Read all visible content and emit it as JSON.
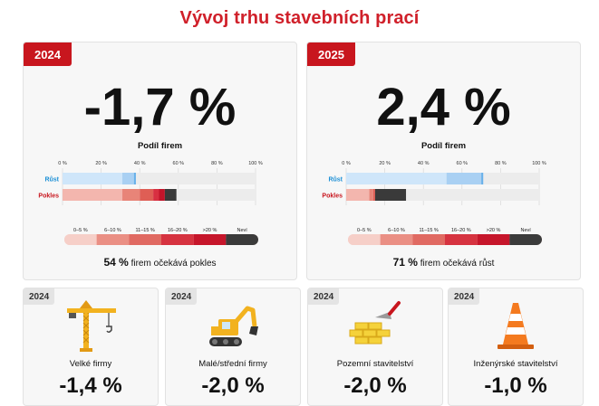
{
  "title": "Vývoj trhu stavebních prací",
  "panels": [
    {
      "year": "2024",
      "value": "-1,7 %",
      "subtitle": "Podíl firem",
      "summary_pct": "54 %",
      "summary_text": "firem očekává pokles"
    },
    {
      "year": "2025",
      "value": "2,4 %",
      "subtitle": "Podíl firem",
      "summary_pct": "71 %",
      "summary_text": "firem očekává růst"
    }
  ],
  "small_cards": [
    {
      "year": "2024",
      "label": "Velké firmy",
      "value": "-1,4 %",
      "icon": "crane-icon"
    },
    {
      "year": "2024",
      "label": "Malé/střední firmy",
      "value": "-2,0 %",
      "icon": "excavator-icon"
    },
    {
      "year": "2024",
      "label": "Pozemní stavitelství",
      "value": "-2,0 %",
      "icon": "bricks-trowel-icon"
    },
    {
      "year": "2024",
      "label": "Inženýrské stavitelství",
      "value": "-1,0 %",
      "icon": "traffic-cone-icon"
    }
  ],
  "colors": {
    "accent_red": "#d0202a",
    "rust_label": "#1b8fd6",
    "pokles_label": "#c8161e"
  },
  "chart_data": [
    {
      "type": "bar",
      "stacked": true,
      "orientation": "horizontal",
      "year": "2024",
      "xlim": [
        0,
        100
      ],
      "x_ticks": [
        "0 %",
        "20 %",
        "40 %",
        "60 %",
        "80 %",
        "100 %"
      ],
      "categories": [
        "Růst",
        "Pokles"
      ],
      "legend": [
        "0–5 %",
        "6–10 %",
        "11–15 %",
        "16–20 %",
        ">20 %",
        "Neví"
      ],
      "series": [
        {
          "name": "0–5 %",
          "values": [
            31,
            31
          ]
        },
        {
          "name": "6–10 %",
          "values": [
            6,
            9
          ]
        },
        {
          "name": "11–15 %",
          "values": [
            1,
            7
          ]
        },
        {
          "name": "16–20 %",
          "values": [
            0,
            3
          ]
        },
        {
          "name": ">20 %",
          "values": [
            0,
            3
          ]
        },
        {
          "name": "Neví",
          "values": [
            0,
            6
          ]
        }
      ]
    },
    {
      "type": "bar",
      "stacked": true,
      "orientation": "horizontal",
      "year": "2025",
      "xlim": [
        0,
        100
      ],
      "x_ticks": [
        "0 %",
        "20 %",
        "40 %",
        "60 %",
        "80 %",
        "100 %"
      ],
      "categories": [
        "Růst",
        "Pokles"
      ],
      "legend": [
        "0–5 %",
        "6–10 %",
        "11–15 %",
        "16–20 %",
        ">20 %",
        "Neví"
      ],
      "series": [
        {
          "name": "0–5 %",
          "values": [
            52,
            12
          ]
        },
        {
          "name": "6–10 %",
          "values": [
            18,
            2
          ]
        },
        {
          "name": "11–15 %",
          "values": [
            1,
            1
          ]
        },
        {
          "name": "16–20 %",
          "values": [
            0,
            0
          ]
        },
        {
          "name": ">20 %",
          "values": [
            0,
            0
          ]
        },
        {
          "name": "Neví",
          "values": [
            0,
            16
          ]
        }
      ]
    }
  ]
}
